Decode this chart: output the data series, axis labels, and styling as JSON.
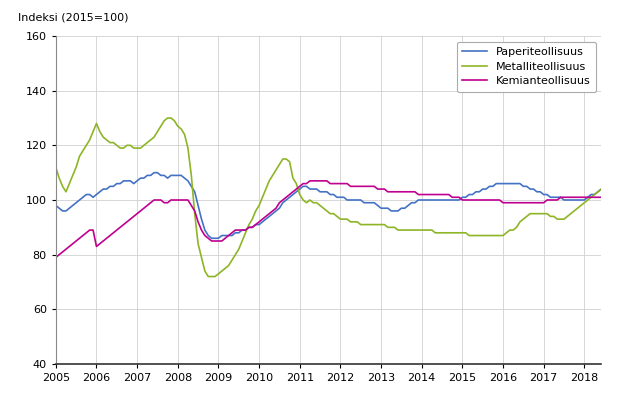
{
  "ylabel": "Indeksi (2015=100)",
  "ylim": [
    40,
    160
  ],
  "yticks": [
    40,
    60,
    80,
    100,
    120,
    140,
    160
  ],
  "xlim_start": 2005.0,
  "xlim_end": 2018.42,
  "line_colors": {
    "paperi": "#4472c4",
    "metalli": "#8db526",
    "kemia": "#c0008f"
  },
  "legend_labels": [
    "Paperiteollisuus",
    "Metalliteollisuus",
    "Kemianteollisuus"
  ],
  "paperi": [
    98,
    97,
    96,
    96,
    97,
    98,
    99,
    100,
    101,
    102,
    102,
    101,
    102,
    103,
    104,
    104,
    105,
    105,
    106,
    106,
    107,
    107,
    107,
    106,
    107,
    108,
    108,
    109,
    109,
    110,
    110,
    109,
    109,
    108,
    109,
    109,
    109,
    109,
    108,
    107,
    105,
    103,
    98,
    93,
    89,
    87,
    86,
    86,
    86,
    87,
    87,
    87,
    87,
    88,
    88,
    89,
    89,
    90,
    90,
    91,
    91,
    92,
    93,
    94,
    95,
    96,
    97,
    99,
    100,
    101,
    102,
    103,
    104,
    105,
    105,
    104,
    104,
    104,
    103,
    103,
    103,
    102,
    102,
    101,
    101,
    101,
    100,
    100,
    100,
    100,
    100,
    99,
    99,
    99,
    99,
    98,
    97,
    97,
    97,
    96,
    96,
    96,
    97,
    97,
    98,
    99,
    99,
    100,
    100,
    100,
    100,
    100,
    100,
    100,
    100,
    100,
    100,
    100,
    100,
    100,
    101,
    101,
    102,
    102,
    103,
    103,
    104,
    104,
    105,
    105,
    106,
    106,
    106,
    106,
    106,
    106,
    106,
    106,
    105,
    105,
    104,
    104,
    103,
    103,
    102,
    102,
    101,
    101,
    101,
    101,
    100,
    100,
    100,
    100,
    100,
    100,
    100,
    101,
    102,
    102,
    103,
    104,
    104,
    105,
    105,
    106,
    106
  ],
  "metalli": [
    112,
    108,
    105,
    103,
    106,
    109,
    112,
    116,
    118,
    120,
    122,
    125,
    128,
    125,
    123,
    122,
    121,
    121,
    120,
    119,
    119,
    120,
    120,
    119,
    119,
    119,
    120,
    121,
    122,
    123,
    125,
    127,
    129,
    130,
    130,
    129,
    127,
    126,
    124,
    119,
    109,
    95,
    84,
    79,
    74,
    72,
    72,
    72,
    73,
    74,
    75,
    76,
    78,
    80,
    82,
    85,
    88,
    91,
    93,
    96,
    98,
    101,
    104,
    107,
    109,
    111,
    113,
    115,
    115,
    114,
    108,
    106,
    102,
    100,
    99,
    100,
    99,
    99,
    98,
    97,
    96,
    95,
    95,
    94,
    93,
    93,
    93,
    92,
    92,
    92,
    91,
    91,
    91,
    91,
    91,
    91,
    91,
    91,
    90,
    90,
    90,
    89,
    89,
    89,
    89,
    89,
    89,
    89,
    89,
    89,
    89,
    89,
    88,
    88,
    88,
    88,
    88,
    88,
    88,
    88,
    88,
    88,
    87,
    87,
    87,
    87,
    87,
    87,
    87,
    87,
    87,
    87,
    87,
    88,
    89,
    89,
    90,
    92,
    93,
    94,
    95,
    95,
    95,
    95,
    95,
    95,
    94,
    94,
    93,
    93,
    93,
    94,
    95,
    96,
    97,
    98,
    99,
    100,
    101,
    102,
    103,
    104,
    105,
    105,
    105,
    105,
    106
  ],
  "kemia": [
    79,
    80,
    81,
    82,
    83,
    84,
    85,
    86,
    87,
    88,
    89,
    89,
    83,
    84,
    85,
    86,
    87,
    88,
    89,
    90,
    91,
    92,
    93,
    94,
    95,
    96,
    97,
    98,
    99,
    100,
    100,
    100,
    99,
    99,
    100,
    100,
    100,
    100,
    100,
    100,
    98,
    96,
    92,
    89,
    87,
    86,
    85,
    85,
    85,
    85,
    86,
    87,
    88,
    89,
    89,
    89,
    89,
    90,
    90,
    91,
    92,
    93,
    94,
    95,
    96,
    97,
    99,
    100,
    101,
    102,
    103,
    104,
    105,
    106,
    106,
    107,
    107,
    107,
    107,
    107,
    107,
    106,
    106,
    106,
    106,
    106,
    106,
    105,
    105,
    105,
    105,
    105,
    105,
    105,
    105,
    104,
    104,
    104,
    103,
    103,
    103,
    103,
    103,
    103,
    103,
    103,
    103,
    102,
    102,
    102,
    102,
    102,
    102,
    102,
    102,
    102,
    102,
    101,
    101,
    101,
    100,
    100,
    100,
    100,
    100,
    100,
    100,
    100,
    100,
    100,
    100,
    100,
    99,
    99,
    99,
    99,
    99,
    99,
    99,
    99,
    99,
    99,
    99,
    99,
    99,
    100,
    100,
    100,
    100,
    101,
    101,
    101,
    101,
    101,
    101,
    101,
    101,
    101,
    101,
    101,
    101,
    101,
    101,
    101,
    101,
    101,
    102
  ]
}
